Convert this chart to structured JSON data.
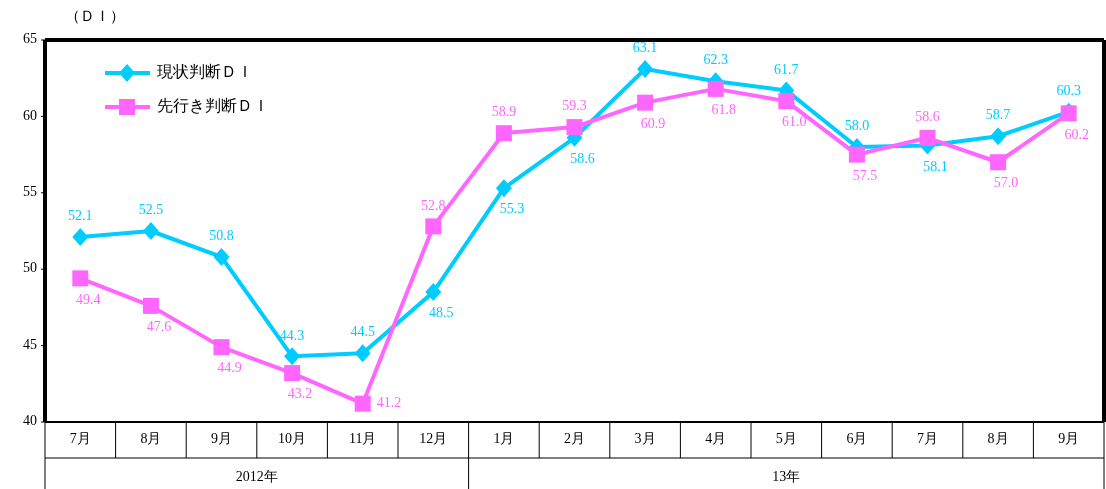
{
  "chart_data": {
    "type": "line",
    "ylabel": "（ＤＩ）",
    "categories": [
      "7月",
      "8月",
      "9月",
      "10月",
      "11月",
      "12月",
      "1月",
      "2月",
      "3月",
      "4月",
      "5月",
      "6月",
      "7月",
      "8月",
      "9月"
    ],
    "series": [
      {
        "name": "現状判断ＤＩ",
        "color": "#00ccff",
        "marker": "diamond",
        "values": [
          52.1,
          52.5,
          50.8,
          44.3,
          44.5,
          48.5,
          55.3,
          58.6,
          63.1,
          62.3,
          61.7,
          58.0,
          58.1,
          58.7,
          60.3
        ],
        "value_labels": [
          "52.1",
          "52.5",
          "50.8",
          "44.3",
          "44.5",
          "48.5",
          "55.3",
          "58.6",
          "63.1",
          "62.3",
          "61.7",
          "58.0",
          "58.1",
          "58.7",
          "60.3"
        ]
      },
      {
        "name": "先行き判断ＤＩ",
        "color": "#ff66ff",
        "marker": "square",
        "values": [
          49.4,
          47.6,
          44.9,
          43.2,
          41.2,
          52.8,
          58.9,
          59.3,
          60.9,
          61.8,
          61.0,
          57.5,
          58.6,
          57.0,
          60.2
        ],
        "value_labels": [
          "49.4",
          "47.6",
          "44.9",
          "43.2",
          "41.2",
          "52.8",
          "58.9",
          "59.3",
          "60.9",
          "61.8",
          "61.0",
          "57.5",
          "58.6",
          "57.0",
          "60.2"
        ]
      }
    ],
    "ylim": [
      40,
      65
    ],
    "yticks": [
      40,
      45,
      50,
      55,
      60,
      65
    ],
    "grid": false,
    "legend": "top left",
    "annotations": [
      "2012年",
      "13年"
    ]
  }
}
